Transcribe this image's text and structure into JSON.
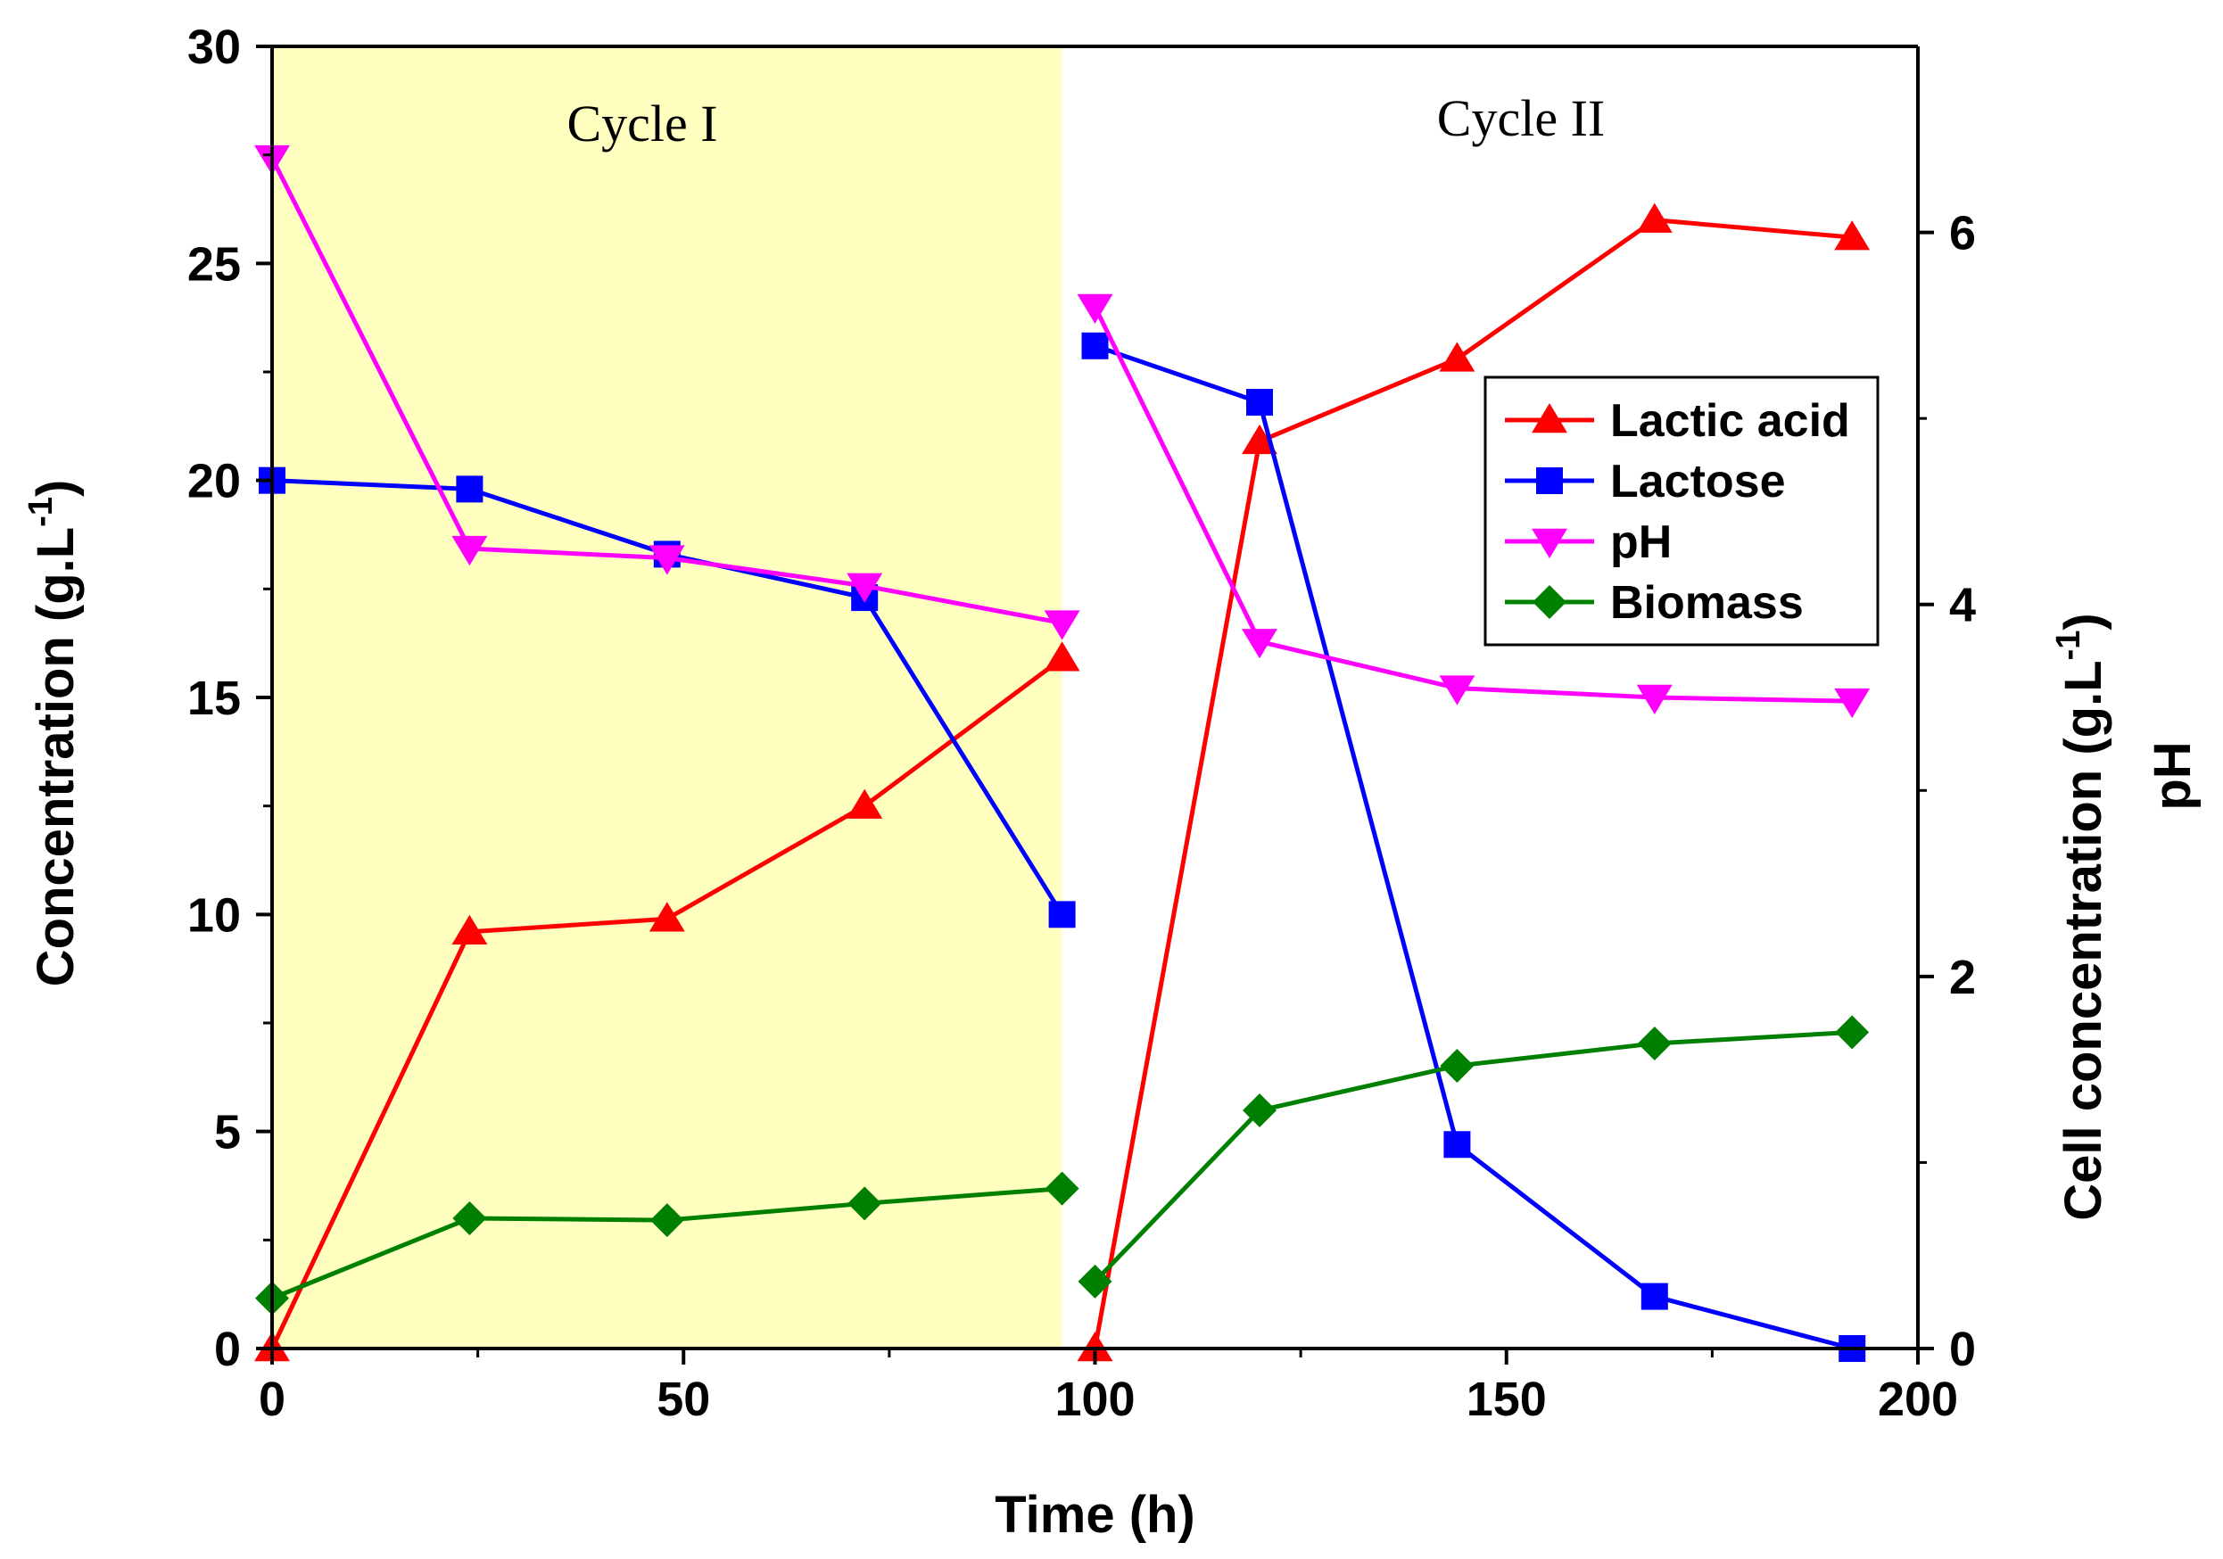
{
  "chart_data": {
    "type": "line",
    "x_axis": {
      "label": "Time (h)",
      "range": [
        0,
        200
      ],
      "ticks": [
        0,
        50,
        100,
        150,
        200
      ]
    },
    "y_left": {
      "label_main": "Concentration (g.L",
      "label_sup": "-1",
      "label_end": ")",
      "range": [
        0,
        30
      ],
      "ticks": [
        0,
        5,
        10,
        15,
        20,
        25,
        30
      ]
    },
    "y_right": {
      "label_main": "Cell concentration (g.L",
      "label_sup": "-1",
      "label_end": ")",
      "label_second": "pH",
      "range": [
        0,
        7
      ],
      "ticks": [
        0,
        2,
        4,
        6
      ]
    },
    "regions": [
      {
        "name": "Cycle I",
        "x_range": [
          0,
          96
        ],
        "color": "#ffffc0"
      },
      {
        "name": "Cycle II",
        "x_range": [
          96,
          200
        ],
        "color": "#ffffff"
      }
    ],
    "series": [
      {
        "name": "Lactic acid",
        "axis": "left",
        "color": "#ff0000",
        "marker": "triangle-up",
        "segments": [
          {
            "x": [
              0,
              24,
              48,
              72,
              96
            ],
            "y": [
              0,
              9.6,
              9.9,
              12.5,
              15.9
            ]
          },
          {
            "x": [
              100,
              120,
              144,
              168,
              192
            ],
            "y": [
              0,
              20.9,
              22.8,
              26.0,
              25.6
            ]
          }
        ]
      },
      {
        "name": "Lactose",
        "axis": "left",
        "color": "#0000ff",
        "marker": "square",
        "segments": [
          {
            "x": [
              0,
              24,
              48,
              72,
              96
            ],
            "y": [
              20.0,
              19.8,
              18.3,
              17.3,
              10.0
            ]
          },
          {
            "x": [
              100,
              120,
              144,
              168,
              192
            ],
            "y": [
              23.1,
              21.8,
              4.7,
              1.2,
              0.0
            ]
          }
        ]
      },
      {
        "name": "pH",
        "axis": "right",
        "color": "#ff00ff",
        "marker": "triangle-down",
        "segments": [
          {
            "x": [
              0,
              24,
              48,
              72,
              96
            ],
            "y": [
              6.4,
              4.3,
              4.25,
              4.1,
              3.9
            ]
          },
          {
            "x": [
              100,
              120,
              144,
              168,
              192
            ],
            "y": [
              5.6,
              3.8,
              3.55,
              3.5,
              3.48
            ]
          }
        ]
      },
      {
        "name": "Biomass",
        "axis": "right",
        "color": "#008000",
        "marker": "diamond",
        "segments": [
          {
            "x": [
              0,
              24,
              48,
              72,
              96
            ],
            "y": [
              0.27,
              0.7,
              0.69,
              0.78,
              0.86
            ]
          },
          {
            "x": [
              100,
              120,
              144,
              168,
              192
            ],
            "y": [
              0.36,
              1.28,
              1.52,
              1.64,
              1.7
            ]
          }
        ]
      }
    ],
    "legend_position": "upper-right"
  }
}
